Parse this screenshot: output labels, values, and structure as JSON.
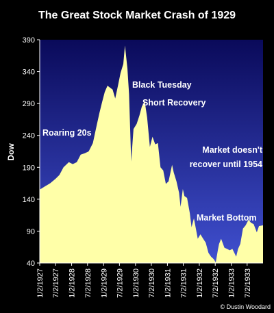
{
  "chart_data": {
    "type": "area",
    "title": "The Great Stock Market Crash of 1929",
    "xlabel": "",
    "ylabel": "Dow",
    "ylim": [
      40,
      390
    ],
    "yticks": [
      40,
      90,
      140,
      190,
      240,
      290,
      340,
      390
    ],
    "xticks": [
      "1/2/1927",
      "7/2/1927",
      "1/2/1928",
      "7/2/1928",
      "1/2/1929",
      "7/2/1929",
      "1/2/1930",
      "7/2/1930",
      "1/2/1931",
      "7/2/1931",
      "1/2/1932",
      "7/2/1932",
      "1/2/1933",
      "7/2/1933"
    ],
    "grid": false,
    "legend": "none",
    "colors": {
      "fill": "#ffffa8",
      "background_top": "#0a0a5a",
      "background_bottom": "#4050d0"
    },
    "series": [
      {
        "x": [
          "1927-01-02",
          "1927-03-01",
          "1927-05-01",
          "1927-07-01",
          "1927-08-15",
          "1927-10-01",
          "1927-12-01",
          "1928-01-15",
          "1928-03-01",
          "1928-04-15",
          "1928-06-01",
          "1928-07-15",
          "1928-09-01",
          "1928-10-15",
          "1928-11-15",
          "1928-12-15",
          "1929-01-15",
          "1929-02-15",
          "1929-03-15",
          "1929-04-15",
          "1929-05-15",
          "1929-06-15",
          "1929-07-15",
          "1929-08-15",
          "1929-09-03",
          "1929-10-01",
          "1929-10-20",
          "1929-11-13",
          "1929-12-10",
          "1930-01-15",
          "1930-02-15",
          "1930-03-15",
          "1930-04-17",
          "1930-05-15",
          "1930-06-15",
          "1930-07-15",
          "1930-08-15",
          "1930-09-15",
          "1930-10-15",
          "1930-11-15",
          "1930-12-15",
          "1931-01-15",
          "1931-02-24",
          "1931-03-15",
          "1931-04-15",
          "1931-05-15",
          "1931-06-01",
          "1931-06-27",
          "1931-07-15",
          "1931-08-15",
          "1931-09-15",
          "1931-10-05",
          "1931-11-01",
          "1931-12-15",
          "1932-01-15",
          "1932-02-15",
          "1932-03-15",
          "1932-04-15",
          "1932-05-15",
          "1932-06-15",
          "1932-07-08",
          "1932-08-01",
          "1932-08-15",
          "1932-09-07",
          "1932-10-15",
          "1932-11-15",
          "1932-12-15",
          "1933-01-15",
          "1933-02-27",
          "1933-03-20",
          "1933-04-15",
          "1933-05-15",
          "1933-06-15",
          "1933-07-18",
          "1933-08-15",
          "1933-09-15",
          "1933-10-21",
          "1933-11-15",
          "1933-12-31"
        ],
        "values": [
          155,
          160,
          165,
          172,
          178,
          190,
          198,
          195,
          198,
          210,
          212,
          215,
          228,
          256,
          275,
          292,
          308,
          318,
          315,
          312,
          298,
          318,
          338,
          352,
          381,
          345,
          305,
          199,
          250,
          258,
          271,
          285,
          294,
          268,
          222,
          238,
          226,
          228,
          190,
          185,
          164,
          168,
          194,
          182,
          168,
          150,
          128,
          156,
          145,
          142,
          118,
          96,
          110,
          78,
          85,
          78,
          72,
          56,
          50,
          46,
          41,
          60,
          70,
          78,
          64,
          62,
          60,
          62,
          50,
          62,
          70,
          94,
          99,
          108,
          103,
          101,
          88,
          98,
          99
        ]
      }
    ],
    "annotations": [
      "Roaring 20s",
      "Black Tuesday",
      "Short Recovery",
      "Market doesn't recover until 1954",
      "Market Bottom"
    ],
    "credit": "© Dustin Woodard"
  }
}
